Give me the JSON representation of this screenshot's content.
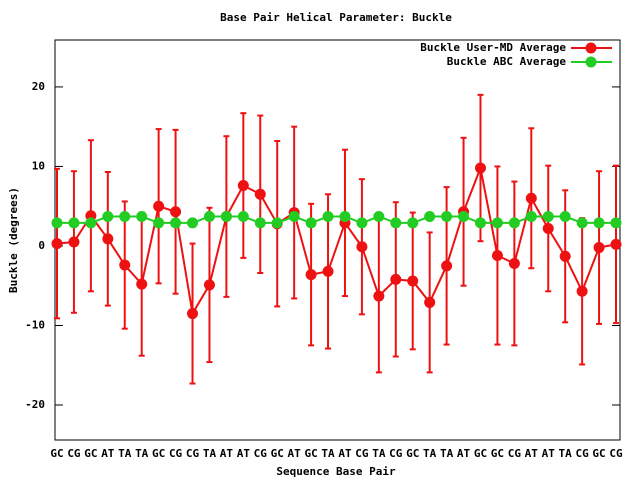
{
  "chart_data": {
    "type": "line",
    "title": "Base Pair Helical Parameter: Buckle",
    "x_label": "Sequence Base Pair",
    "y_label": "Buckle (degrees)",
    "categories": [
      "GC",
      "CG",
      "GC",
      "AT",
      "TA",
      "TA",
      "GC",
      "CG",
      "CG",
      "TA",
      "AT",
      "AT",
      "CG",
      "GC",
      "AT",
      "GC",
      "TA",
      "AT",
      "CG",
      "TA",
      "CG",
      "GC",
      "TA",
      "TA",
      "AT",
      "GC",
      "GC",
      "CG",
      "AT",
      "AT",
      "TA",
      "CG",
      "GC",
      "CG"
    ],
    "series": [
      {
        "name": "Buckle User-MD Average",
        "color": "#ee1111",
        "values": [
          0.3,
          0.5,
          3.8,
          0.9,
          -2.4,
          -4.8,
          5.0,
          4.3,
          -8.5,
          -4.9,
          3.7,
          7.6,
          6.5,
          2.8,
          4.2,
          -3.6,
          -3.2,
          2.9,
          -0.1,
          -6.3,
          -4.2,
          -4.4,
          -7.1,
          -2.5,
          4.3,
          9.8,
          -1.2,
          -2.2,
          6.0,
          2.2,
          -1.3,
          -5.7,
          -0.2,
          0.2
        ],
        "errors": [
          9.4,
          8.9,
          9.5,
          8.4,
          8.0,
          9.0,
          9.7,
          10.3,
          8.8,
          9.7,
          10.1,
          9.1,
          9.9,
          10.4,
          10.8,
          8.9,
          9.7,
          9.2,
          8.5,
          9.6,
          9.7,
          8.6,
          8.8,
          9.9,
          9.3,
          9.2,
          11.2,
          10.3,
          8.8,
          7.9,
          8.3,
          9.2,
          9.6,
          9.9
        ]
      },
      {
        "name": "Buckle ABC Average",
        "color": "#22cc22",
        "values": [
          2.9,
          2.9,
          2.9,
          3.7,
          3.7,
          3.7,
          2.9,
          2.9,
          2.9,
          3.7,
          3.7,
          3.7,
          2.9,
          2.9,
          3.7,
          2.9,
          3.7,
          3.7,
          2.9,
          3.7,
          2.9,
          2.9,
          3.7,
          3.7,
          3.7,
          2.9,
          2.9,
          2.9,
          3.7,
          3.7,
          3.7,
          2.9,
          2.9,
          2.9
        ]
      }
    ],
    "ylim": [
      -24.4,
      25.9
    ],
    "yticks": [
      -20,
      -10,
      0,
      10,
      20
    ],
    "grid": false,
    "legend": "top-right"
  }
}
